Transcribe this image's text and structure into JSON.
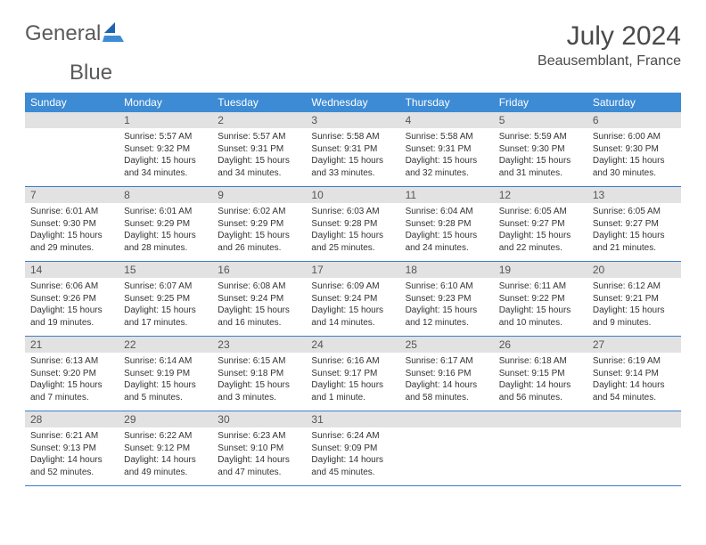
{
  "brand": {
    "word1": "General",
    "word2": "Blue"
  },
  "header": {
    "title": "July 2024",
    "location": "Beausemblant, France"
  },
  "colors": {
    "header_bg": "#3d8bd4",
    "header_text": "#ffffff",
    "daynum_bg": "#e2e2e2",
    "border": "#3d7cc9",
    "brand_gray": "#5a5a5a",
    "brand_blue": "#3d7cc9"
  },
  "weekdays": [
    "Sunday",
    "Monday",
    "Tuesday",
    "Wednesday",
    "Thursday",
    "Friday",
    "Saturday"
  ],
  "start_offset": 1,
  "days": [
    {
      "n": "1",
      "sr": "5:57 AM",
      "ss": "9:32 PM",
      "dl": "15 hours and 34 minutes."
    },
    {
      "n": "2",
      "sr": "5:57 AM",
      "ss": "9:31 PM",
      "dl": "15 hours and 34 minutes."
    },
    {
      "n": "3",
      "sr": "5:58 AM",
      "ss": "9:31 PM",
      "dl": "15 hours and 33 minutes."
    },
    {
      "n": "4",
      "sr": "5:58 AM",
      "ss": "9:31 PM",
      "dl": "15 hours and 32 minutes."
    },
    {
      "n": "5",
      "sr": "5:59 AM",
      "ss": "9:30 PM",
      "dl": "15 hours and 31 minutes."
    },
    {
      "n": "6",
      "sr": "6:00 AM",
      "ss": "9:30 PM",
      "dl": "15 hours and 30 minutes."
    },
    {
      "n": "7",
      "sr": "6:01 AM",
      "ss": "9:30 PM",
      "dl": "15 hours and 29 minutes."
    },
    {
      "n": "8",
      "sr": "6:01 AM",
      "ss": "9:29 PM",
      "dl": "15 hours and 28 minutes."
    },
    {
      "n": "9",
      "sr": "6:02 AM",
      "ss": "9:29 PM",
      "dl": "15 hours and 26 minutes."
    },
    {
      "n": "10",
      "sr": "6:03 AM",
      "ss": "9:28 PM",
      "dl": "15 hours and 25 minutes."
    },
    {
      "n": "11",
      "sr": "6:04 AM",
      "ss": "9:28 PM",
      "dl": "15 hours and 24 minutes."
    },
    {
      "n": "12",
      "sr": "6:05 AM",
      "ss": "9:27 PM",
      "dl": "15 hours and 22 minutes."
    },
    {
      "n": "13",
      "sr": "6:05 AM",
      "ss": "9:27 PM",
      "dl": "15 hours and 21 minutes."
    },
    {
      "n": "14",
      "sr": "6:06 AM",
      "ss": "9:26 PM",
      "dl": "15 hours and 19 minutes."
    },
    {
      "n": "15",
      "sr": "6:07 AM",
      "ss": "9:25 PM",
      "dl": "15 hours and 17 minutes."
    },
    {
      "n": "16",
      "sr": "6:08 AM",
      "ss": "9:24 PM",
      "dl": "15 hours and 16 minutes."
    },
    {
      "n": "17",
      "sr": "6:09 AM",
      "ss": "9:24 PM",
      "dl": "15 hours and 14 minutes."
    },
    {
      "n": "18",
      "sr": "6:10 AM",
      "ss": "9:23 PM",
      "dl": "15 hours and 12 minutes."
    },
    {
      "n": "19",
      "sr": "6:11 AM",
      "ss": "9:22 PM",
      "dl": "15 hours and 10 minutes."
    },
    {
      "n": "20",
      "sr": "6:12 AM",
      "ss": "9:21 PM",
      "dl": "15 hours and 9 minutes."
    },
    {
      "n": "21",
      "sr": "6:13 AM",
      "ss": "9:20 PM",
      "dl": "15 hours and 7 minutes."
    },
    {
      "n": "22",
      "sr": "6:14 AM",
      "ss": "9:19 PM",
      "dl": "15 hours and 5 minutes."
    },
    {
      "n": "23",
      "sr": "6:15 AM",
      "ss": "9:18 PM",
      "dl": "15 hours and 3 minutes."
    },
    {
      "n": "24",
      "sr": "6:16 AM",
      "ss": "9:17 PM",
      "dl": "15 hours and 1 minute."
    },
    {
      "n": "25",
      "sr": "6:17 AM",
      "ss": "9:16 PM",
      "dl": "14 hours and 58 minutes."
    },
    {
      "n": "26",
      "sr": "6:18 AM",
      "ss": "9:15 PM",
      "dl": "14 hours and 56 minutes."
    },
    {
      "n": "27",
      "sr": "6:19 AM",
      "ss": "9:14 PM",
      "dl": "14 hours and 54 minutes."
    },
    {
      "n": "28",
      "sr": "6:21 AM",
      "ss": "9:13 PM",
      "dl": "14 hours and 52 minutes."
    },
    {
      "n": "29",
      "sr": "6:22 AM",
      "ss": "9:12 PM",
      "dl": "14 hours and 49 minutes."
    },
    {
      "n": "30",
      "sr": "6:23 AM",
      "ss": "9:10 PM",
      "dl": "14 hours and 47 minutes."
    },
    {
      "n": "31",
      "sr": "6:24 AM",
      "ss": "9:09 PM",
      "dl": "14 hours and 45 minutes."
    }
  ],
  "labels": {
    "sunrise": "Sunrise:",
    "sunset": "Sunset:",
    "daylight": "Daylight:"
  }
}
